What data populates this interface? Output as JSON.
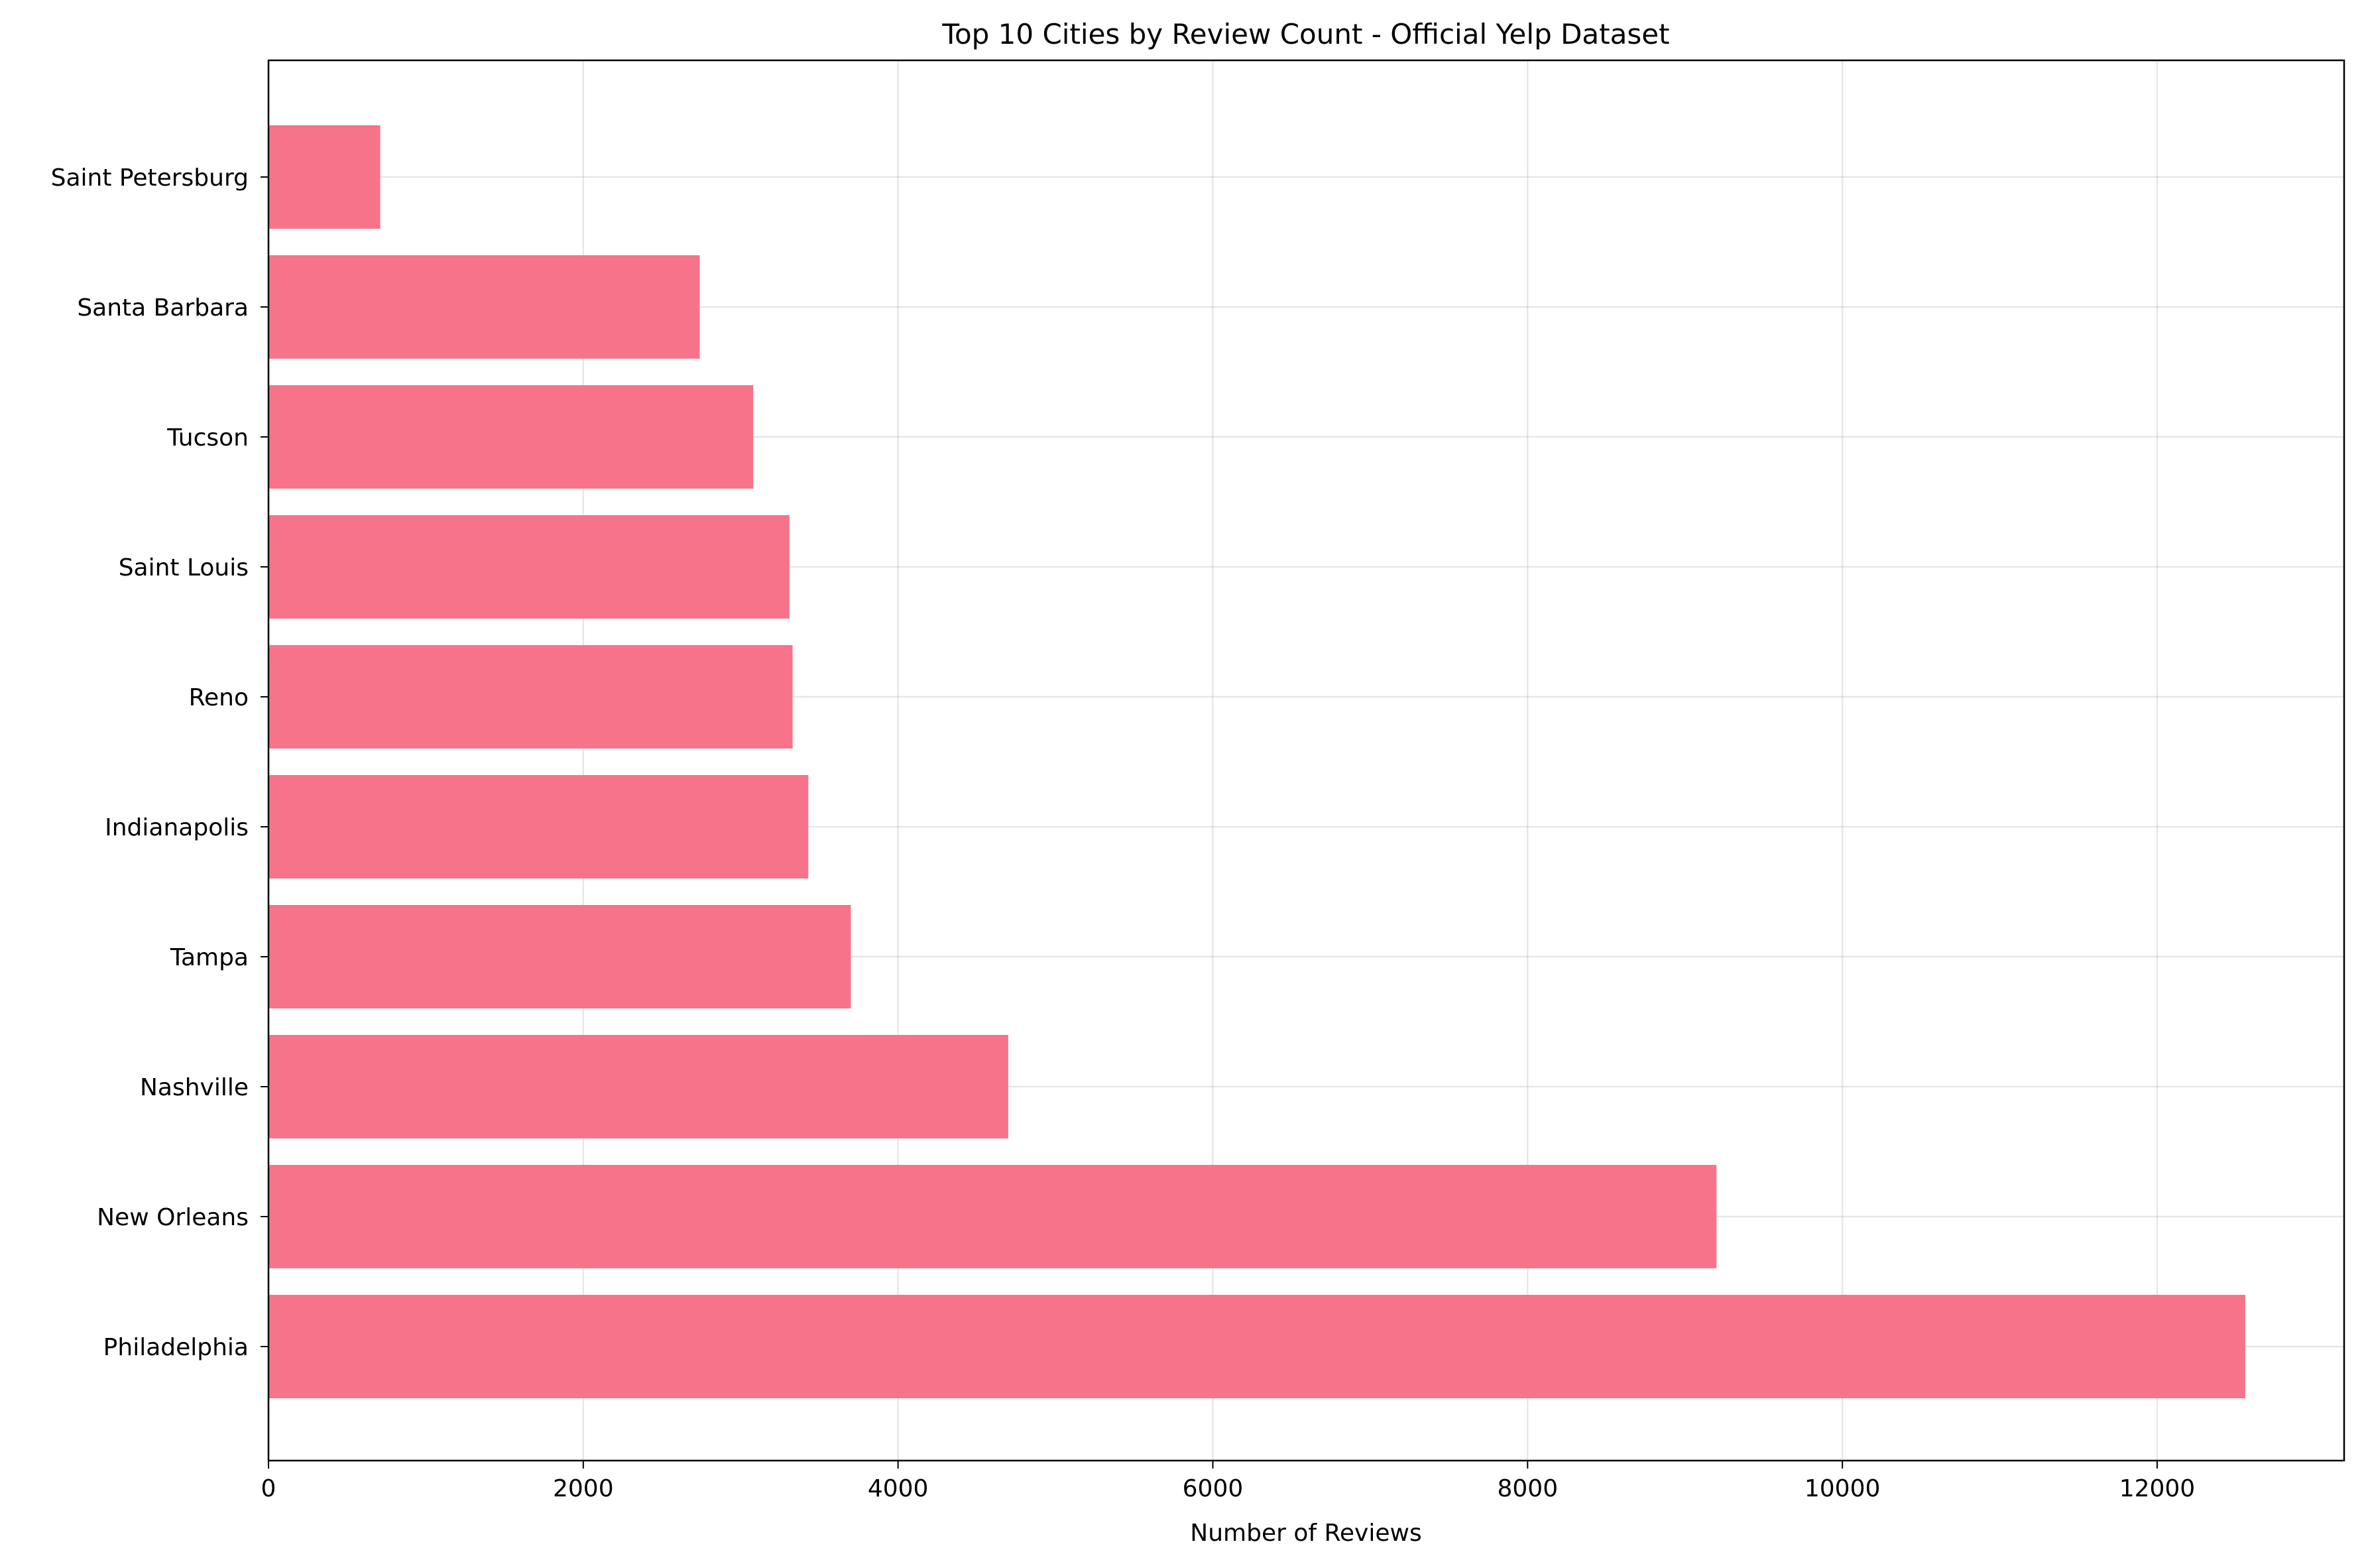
{
  "chart_data": {
    "type": "bar",
    "orientation": "horizontal",
    "title": "Top 10 Cities by Review Count - Official Yelp Dataset",
    "xlabel": "Number of Reviews",
    "ylabel": "",
    "categories": [
      "Philadelphia",
      "New Orleans",
      "Nashville",
      "Tampa",
      "Indianapolis",
      "Reno",
      "Saint Louis",
      "Tucson",
      "Santa Barbara",
      "Saint Petersburg"
    ],
    "values": [
      12560,
      9200,
      4700,
      3700,
      3430,
      3330,
      3310,
      3080,
      2740,
      710
    ],
    "xlim": [
      0,
      13188
    ],
    "xticks": [
      0,
      2000,
      4000,
      6000,
      8000,
      10000,
      12000
    ],
    "grid": true,
    "bar_color": "#f7738a"
  }
}
